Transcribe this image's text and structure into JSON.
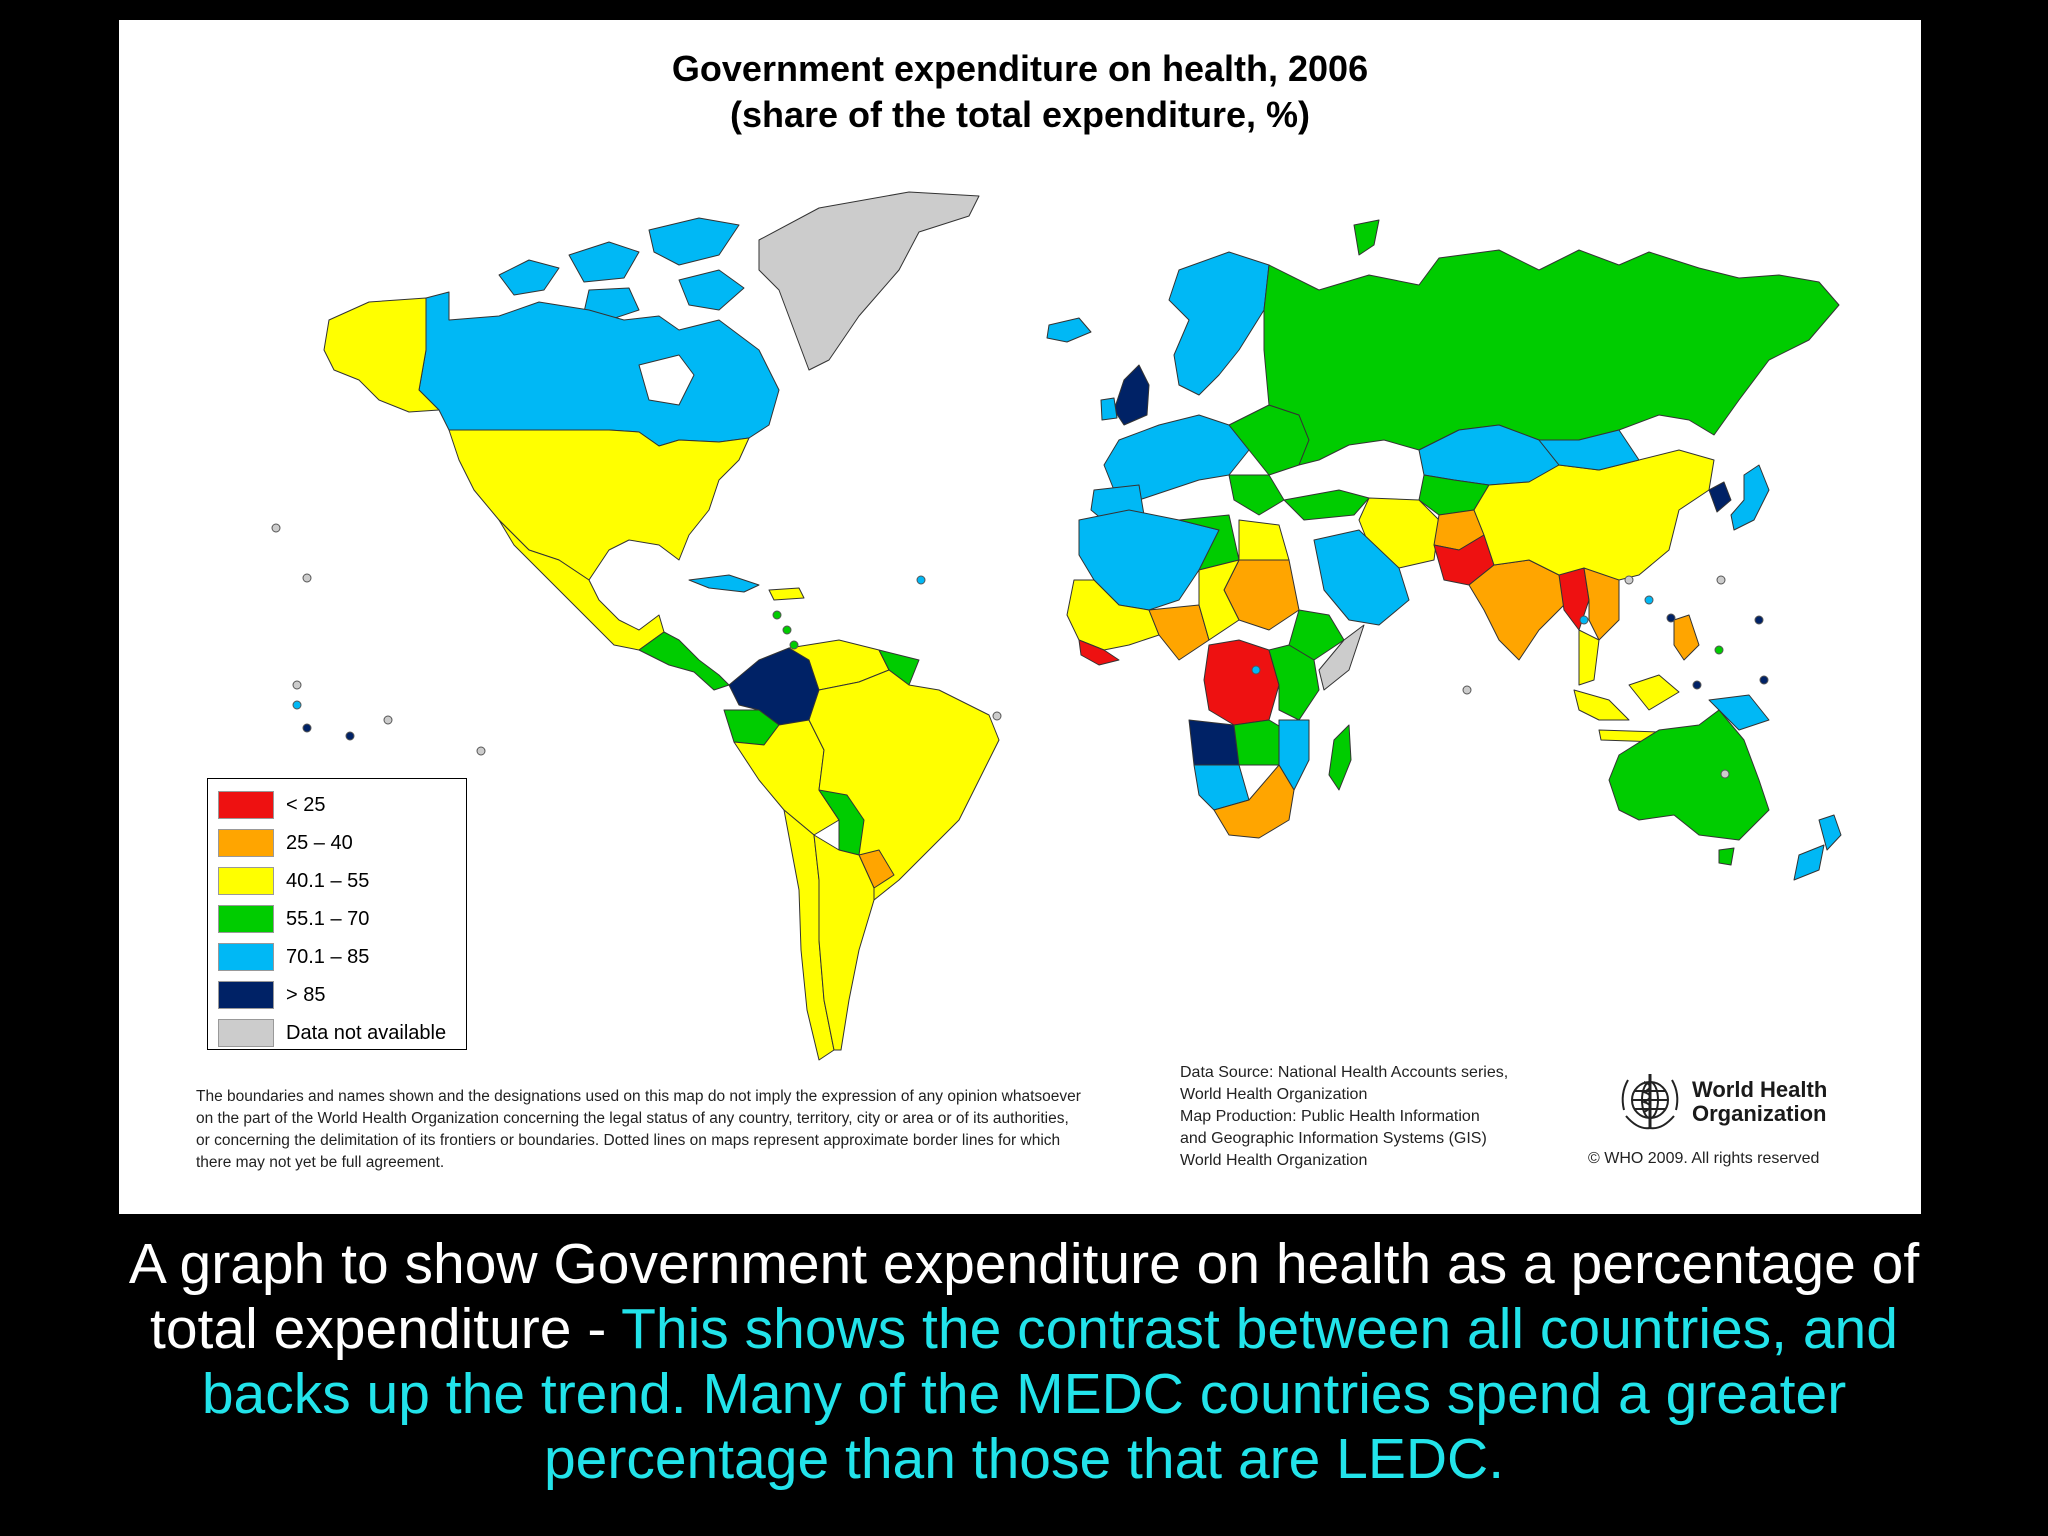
{
  "map": {
    "title_line1": "Government expenditure on health, 2006",
    "title_line2": "(share of the total expenditure, %)",
    "colors": {
      "lt25": "#ee1111",
      "c25_40": "#ffa500",
      "c40_55": "#ffff00",
      "c55_70": "#00cc00",
      "c70_85": "#00b8f5",
      "gt85": "#002266",
      "na": "#cccccc"
    },
    "legend": [
      {
        "label": "< 25",
        "color": "#ee1111"
      },
      {
        "label": "25 – 40",
        "color": "#ffa500"
      },
      {
        "label": "40.1 – 55",
        "color": "#ffff00"
      },
      {
        "label": "55.1 – 70",
        "color": "#00cc00"
      },
      {
        "label": "70.1 – 85",
        "color": "#00b8f5"
      },
      {
        "label": "> 85",
        "color": "#002266"
      },
      {
        "label": "Data not available",
        "color": "#cccccc"
      }
    ],
    "disclaimer": [
      "The boundaries and names shown and the designations used on this map do not imply the expression of any opinion whatsoever",
      "on the part of the World Health Organization concerning the legal status of any country, territory, city or area or of its authorities,",
      "or concerning the delimitation of its frontiers or boundaries.  Dotted lines on maps represent approximate border lines for which",
      "there may not yet be full agreement."
    ],
    "data_source": [
      "Data Source: National Health Accounts series,",
      "World Health Organization",
      "Map Production: Public Health Information",
      "and Geographic Information Systems (GIS)",
      "World Health Organization"
    ],
    "who_name_line1": "World Health",
    "who_name_line2": "Organization",
    "copyright": "© WHO 2009. All rights reserved"
  },
  "caption": {
    "white_line1": "A graph to show Government expenditure on health as a percentage of",
    "white_line2": "total expenditure - ",
    "cyan_line2": "This shows the contrast between all countries, and",
    "cyan_line3": "backs up the trend. Many of the MEDC countries spend a greater",
    "cyan_line4": "percentage than those that are LEDC."
  }
}
